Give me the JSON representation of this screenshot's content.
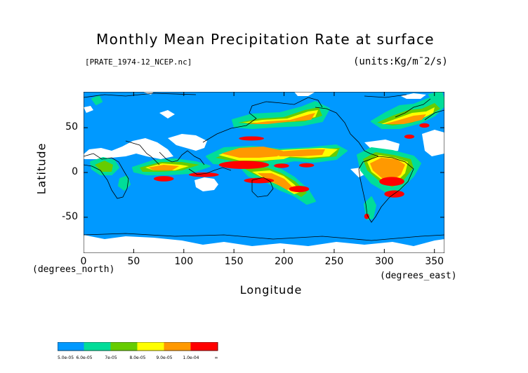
{
  "title": "Monthly Mean Precipitation Rate at surface",
  "subtitle": "[PRATE_1974-12_NCEP.nc]",
  "units": "(units:Kg/m¯2/s)",
  "chart_data": {
    "type": "heatmap",
    "title": "Monthly Mean Precipitation Rate at surface",
    "xlabel": "Longitude",
    "ylabel": "Latitude",
    "x_unit_note": "(degrees_east)",
    "y_unit_note": "(degrees_north)",
    "xlim": [
      0,
      360
    ],
    "ylim": [
      -90,
      90
    ],
    "x_ticks": [
      0,
      50,
      100,
      150,
      200,
      250,
      300,
      350
    ],
    "y_ticks": [
      -50,
      0,
      50
    ],
    "legend": {
      "labels": [
        "5.0e-05",
        "6.0e-05",
        "7e-05",
        "8.0e-05",
        "9.0e-05",
        "1.0e-04",
        "∞"
      ],
      "colors": [
        "#0099ff",
        "#00dd99",
        "#66cc00",
        "#ffff00",
        "#ff9900",
        "#ff0000"
      ]
    },
    "background_color": "#0099ff",
    "nodata_color": "#ffffff",
    "regions": [
      {
        "level": 5,
        "lon": [
          135,
          185
        ],
        "lat": [
          4,
          13
        ]
      },
      {
        "level": 5,
        "lon": [
          190,
          205
        ],
        "lat": [
          5,
          10
        ]
      },
      {
        "level": 5,
        "lon": [
          215,
          230
        ],
        "lat": [
          6,
          10
        ]
      },
      {
        "level": 5,
        "lon": [
          160,
          190
        ],
        "lat": [
          -12,
          -6
        ]
      },
      {
        "level": 5,
        "lon": [
          205,
          225
        ],
        "lat": [
          -22,
          -15
        ]
      },
      {
        "level": 5,
        "lon": [
          70,
          90
        ],
        "lat": [
          -10,
          -4
        ]
      },
      {
        "level": 5,
        "lon": [
          105,
          135
        ],
        "lat": [
          -5,
          0
        ]
      },
      {
        "level": 5,
        "lon": [
          295,
          320
        ],
        "lat": [
          -15,
          -5
        ]
      },
      {
        "level": 5,
        "lon": [
          300,
          320
        ],
        "lat": [
          -28,
          -20
        ]
      },
      {
        "level": 5,
        "lon": [
          155,
          180
        ],
        "lat": [
          36,
          40
        ]
      },
      {
        "level": 5,
        "lon": [
          320,
          330
        ],
        "lat": [
          38,
          42
        ]
      },
      {
        "level": 5,
        "lon": [
          335,
          345
        ],
        "lat": [
          50,
          55
        ]
      },
      {
        "level": 5,
        "lon": [
          280,
          285
        ],
        "lat": [
          -52,
          -46
        ]
      }
    ]
  }
}
